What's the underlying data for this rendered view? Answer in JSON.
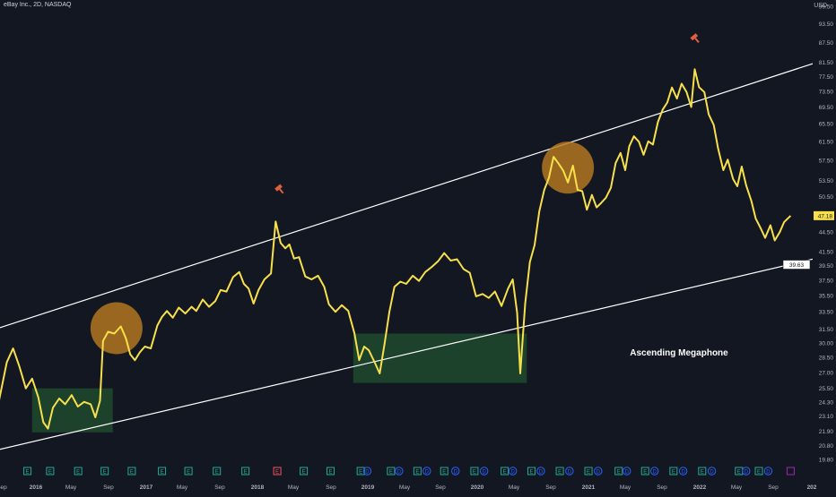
{
  "header": {
    "symbol_title": "eBay Inc., 2D, NASDAQ"
  },
  "price_axis": {
    "unit": "USD"
  },
  "chart_data": {
    "type": "line",
    "title": "eBay Inc., 2D, NASDAQ",
    "y_ticks": [
      "19.80",
      "20.80",
      "21.90",
      "23.10",
      "24.30",
      "25.50",
      "27.00",
      "28.50",
      "30.00",
      "31.50",
      "33.50",
      "35.50",
      "37.50",
      "39.50",
      "41.50",
      "44.50",
      "47.50",
      "50.50",
      "53.50",
      "57.50",
      "61.50",
      "65.50",
      "69.50",
      "73.50",
      "77.50",
      "81.50",
      "87.50",
      "93.50",
      "99.50"
    ],
    "x_ticks": [
      "Sep",
      "2016",
      "May",
      "Sep",
      "2017",
      "May",
      "Sep",
      "2018",
      "May",
      "Sep",
      "2019",
      "May",
      "Sep",
      "2020",
      "May",
      "Sep",
      "2021",
      "May",
      "Sep",
      "2022",
      "May",
      "Sep",
      "202"
    ],
    "ylim": [
      19.8,
      99.5
    ],
    "log_scale": true,
    "last_price_label": "47.18",
    "channel_price_label": "39.63",
    "annotation": "Ascending Megaphone",
    "series": [
      {
        "color": "#f7e04b",
        "points": [
          [
            "2015-08-01",
            26.5
          ],
          [
            "2015-08-20",
            24.3
          ],
          [
            "2015-09-15",
            28.0
          ],
          [
            "2015-10-05",
            29.4
          ],
          [
            "2015-10-25",
            27.6
          ],
          [
            "2015-11-15",
            25.5
          ],
          [
            "2015-12-05",
            26.4
          ],
          [
            "2015-12-25",
            24.7
          ],
          [
            "2016-01-10",
            22.6
          ],
          [
            "2016-01-25",
            22.1
          ],
          [
            "2016-02-10",
            23.8
          ],
          [
            "2016-03-01",
            24.6
          ],
          [
            "2016-03-20",
            24.1
          ],
          [
            "2016-04-10",
            24.9
          ],
          [
            "2016-04-30",
            23.9
          ],
          [
            "2016-05-20",
            24.3
          ],
          [
            "2016-06-10",
            24.1
          ],
          [
            "2016-06-25",
            23.0
          ],
          [
            "2016-07-10",
            24.4
          ],
          [
            "2016-07-20",
            30.2
          ],
          [
            "2016-08-05",
            31.2
          ],
          [
            "2016-08-25",
            31.0
          ],
          [
            "2016-09-15",
            31.8
          ],
          [
            "2016-10-01",
            30.5
          ],
          [
            "2016-10-15",
            28.8
          ],
          [
            "2016-10-30",
            28.2
          ],
          [
            "2016-11-15",
            29.0
          ],
          [
            "2016-12-01",
            29.6
          ],
          [
            "2016-12-20",
            29.4
          ],
          [
            "2017-01-10",
            31.9
          ],
          [
            "2017-01-25",
            32.9
          ],
          [
            "2017-02-10",
            33.6
          ],
          [
            "2017-03-01",
            32.8
          ],
          [
            "2017-03-20",
            34.0
          ],
          [
            "2017-04-10",
            33.3
          ],
          [
            "2017-04-30",
            34.1
          ],
          [
            "2017-05-15",
            33.6
          ],
          [
            "2017-06-05",
            35.0
          ],
          [
            "2017-06-25",
            34.1
          ],
          [
            "2017-07-15",
            34.8
          ],
          [
            "2017-08-01",
            36.2
          ],
          [
            "2017-08-20",
            36.0
          ],
          [
            "2017-09-10",
            37.9
          ],
          [
            "2017-09-30",
            38.6
          ],
          [
            "2017-10-15",
            37.0
          ],
          [
            "2017-10-30",
            36.4
          ],
          [
            "2017-11-15",
            34.5
          ],
          [
            "2017-12-01",
            36.2
          ],
          [
            "2017-12-20",
            37.6
          ],
          [
            "2018-01-10",
            38.4
          ],
          [
            "2018-01-25",
            46.2
          ],
          [
            "2018-02-10",
            42.8
          ],
          [
            "2018-02-25",
            42.0
          ],
          [
            "2018-03-10",
            42.6
          ],
          [
            "2018-03-25",
            40.5
          ],
          [
            "2018-04-10",
            40.7
          ],
          [
            "2018-04-30",
            38.0
          ],
          [
            "2018-05-20",
            37.6
          ],
          [
            "2018-06-10",
            38.1
          ],
          [
            "2018-06-30",
            36.6
          ],
          [
            "2018-07-15",
            34.4
          ],
          [
            "2018-08-05",
            33.5
          ],
          [
            "2018-08-25",
            34.3
          ],
          [
            "2018-09-15",
            33.6
          ],
          [
            "2018-10-05",
            31.0
          ],
          [
            "2018-10-20",
            28.2
          ],
          [
            "2018-11-05",
            29.6
          ],
          [
            "2018-11-20",
            29.2
          ],
          [
            "2018-12-10",
            27.9
          ],
          [
            "2018-12-25",
            26.9
          ],
          [
            "2019-01-10",
            30.0
          ],
          [
            "2019-01-25",
            33.5
          ],
          [
            "2019-02-10",
            36.6
          ],
          [
            "2019-03-01",
            37.3
          ],
          [
            "2019-03-20",
            37.0
          ],
          [
            "2019-04-10",
            38.1
          ],
          [
            "2019-04-30",
            37.4
          ],
          [
            "2019-05-20",
            38.6
          ],
          [
            "2019-06-10",
            39.3
          ],
          [
            "2019-06-30",
            40.1
          ],
          [
            "2019-07-20",
            41.3
          ],
          [
            "2019-08-10",
            40.2
          ],
          [
            "2019-08-30",
            40.4
          ],
          [
            "2019-09-20",
            39.0
          ],
          [
            "2019-10-10",
            38.5
          ],
          [
            "2019-10-30",
            35.4
          ],
          [
            "2019-11-20",
            35.7
          ],
          [
            "2019-12-10",
            35.2
          ],
          [
            "2019-12-30",
            36.0
          ],
          [
            "2020-01-20",
            34.2
          ],
          [
            "2020-02-10",
            36.4
          ],
          [
            "2020-02-25",
            37.6
          ],
          [
            "2020-03-10",
            33.4
          ],
          [
            "2020-03-20",
            26.9
          ],
          [
            "2020-04-05",
            34.5
          ],
          [
            "2020-04-20",
            40.0
          ],
          [
            "2020-05-05",
            42.5
          ],
          [
            "2020-05-20",
            47.9
          ],
          [
            "2020-06-05",
            51.7
          ],
          [
            "2020-06-20",
            54.0
          ],
          [
            "2020-07-05",
            58.2
          ],
          [
            "2020-07-20",
            56.9
          ],
          [
            "2020-08-05",
            55.4
          ],
          [
            "2020-08-20",
            53.1
          ],
          [
            "2020-09-05",
            56.4
          ],
          [
            "2020-09-20",
            51.7
          ],
          [
            "2020-10-05",
            51.5
          ],
          [
            "2020-10-20",
            48.2
          ],
          [
            "2020-11-05",
            50.8
          ],
          [
            "2020-11-20",
            48.6
          ],
          [
            "2020-12-05",
            49.4
          ],
          [
            "2020-12-20",
            50.3
          ],
          [
            "2021-01-05",
            52.1
          ],
          [
            "2021-01-20",
            56.9
          ],
          [
            "2021-02-05",
            59.0
          ],
          [
            "2021-02-20",
            55.5
          ],
          [
            "2021-03-05",
            60.4
          ],
          [
            "2021-03-20",
            62.6
          ],
          [
            "2021-04-05",
            61.4
          ],
          [
            "2021-04-20",
            58.6
          ],
          [
            "2021-05-05",
            61.5
          ],
          [
            "2021-05-20",
            60.8
          ],
          [
            "2021-06-05",
            65.9
          ],
          [
            "2021-06-20",
            68.8
          ],
          [
            "2021-07-05",
            70.6
          ],
          [
            "2021-07-20",
            74.5
          ],
          [
            "2021-08-05",
            71.6
          ],
          [
            "2021-08-20",
            75.5
          ],
          [
            "2021-09-05",
            73.3
          ],
          [
            "2021-09-20",
            69.5
          ],
          [
            "2021-10-01",
            79.5
          ],
          [
            "2021-10-15",
            74.6
          ],
          [
            "2021-11-01",
            73.3
          ],
          [
            "2021-11-15",
            67.7
          ],
          [
            "2021-12-01",
            65.2
          ],
          [
            "2021-12-15",
            60.0
          ],
          [
            "2022-01-01",
            55.5
          ],
          [
            "2022-01-15",
            57.6
          ],
          [
            "2022-02-01",
            53.8
          ],
          [
            "2022-02-15",
            52.4
          ],
          [
            "2022-03-01",
            56.2
          ],
          [
            "2022-03-15",
            52.6
          ],
          [
            "2022-04-01",
            49.7
          ],
          [
            "2022-04-15",
            46.7
          ],
          [
            "2022-05-01",
            45.1
          ],
          [
            "2022-05-15",
            43.6
          ],
          [
            "2022-06-01",
            45.6
          ],
          [
            "2022-06-15",
            43.2
          ],
          [
            "2022-07-01",
            44.5
          ],
          [
            "2022-07-15",
            46.1
          ],
          [
            "2022-08-05",
            47.18
          ]
        ]
      }
    ],
    "trendlines": [
      {
        "role": "upper",
        "color": "#ffffff",
        "from": [
          "2015-08-01",
          31.4
        ],
        "to": [
          "2022-11-01",
          81.6
        ]
      },
      {
        "role": "lower",
        "color": "#ffffff",
        "from": [
          "2015-08-01",
          20.4
        ],
        "to": [
          "2022-11-01",
          40.6
        ]
      }
    ],
    "rectangles": [
      {
        "color": "#1f4a2e",
        "from": [
          "2015-12-05",
          25.5
        ],
        "to": [
          "2016-08-20",
          21.8
        ]
      },
      {
        "color": "#1f4a2e",
        "from": [
          "2018-10-01",
          31.0
        ],
        "to": [
          "2020-04-10",
          26.0
        ]
      }
    ],
    "circles": [
      {
        "color": "#b7791f",
        "center": [
          "2016-09-01",
          31.6
        ]
      },
      {
        "color": "#b7791f",
        "center": [
          "2020-08-20",
          56.0
        ]
      }
    ],
    "event_markers": [
      {
        "label": "E",
        "color": "#22ab94",
        "date": "2015-11-20"
      },
      {
        "label": "E",
        "color": "#22ab94",
        "date": "2016-02-01"
      },
      {
        "label": "E",
        "color": "#22ab94",
        "date": "2016-05-01"
      },
      {
        "label": "E",
        "color": "#22ab94",
        "date": "2016-07-25"
      },
      {
        "label": "E",
        "color": "#22ab94",
        "date": "2016-10-20"
      },
      {
        "label": "E",
        "color": "#22ab94",
        "date": "2017-01-25"
      },
      {
        "label": "E",
        "color": "#22ab94",
        "date": "2017-04-20"
      },
      {
        "label": "E",
        "color": "#22ab94",
        "date": "2017-07-20"
      },
      {
        "label": "E",
        "color": "#22ab94",
        "date": "2017-10-20"
      },
      {
        "label": "E",
        "color": "#f7525f",
        "date": "2018-01-30"
      },
      {
        "label": "E",
        "color": "#22ab94",
        "date": "2018-04-25"
      },
      {
        "label": "E",
        "color": "#22ab94",
        "date": "2018-07-20"
      },
      {
        "label": "E",
        "color": "#22ab94",
        "date": "2018-10-25"
      },
      {
        "label": "D",
        "color": "#2962ff",
        "date": "2018-11-15"
      },
      {
        "label": "E",
        "color": "#22ab94",
        "date": "2019-01-30"
      },
      {
        "label": "D",
        "color": "#2962ff",
        "date": "2019-02-25"
      },
      {
        "label": "E",
        "color": "#22ab94",
        "date": "2019-04-25"
      },
      {
        "label": "D",
        "color": "#2962ff",
        "date": "2019-05-25"
      },
      {
        "label": "E",
        "color": "#22ab94",
        "date": "2019-07-20"
      },
      {
        "label": "D",
        "color": "#2962ff",
        "date": "2019-08-25"
      },
      {
        "label": "E",
        "color": "#22ab94",
        "date": "2019-10-25"
      },
      {
        "label": "D",
        "color": "#2962ff",
        "date": "2019-11-25"
      },
      {
        "label": "E",
        "color": "#22ab94",
        "date": "2020-01-30"
      },
      {
        "label": "D",
        "color": "#2962ff",
        "date": "2020-02-25"
      },
      {
        "label": "E",
        "color": "#22ab94",
        "date": "2020-04-25"
      },
      {
        "label": "D",
        "color": "#2962ff",
        "date": "2020-05-25"
      },
      {
        "label": "E",
        "color": "#22ab94",
        "date": "2020-07-25"
      },
      {
        "label": "D",
        "color": "#2962ff",
        "date": "2020-08-25"
      },
      {
        "label": "E",
        "color": "#22ab94",
        "date": "2020-10-25"
      },
      {
        "label": "D",
        "color": "#2962ff",
        "date": "2020-11-25"
      },
      {
        "label": "E",
        "color": "#22ab94",
        "date": "2021-01-30"
      },
      {
        "label": "D",
        "color": "#2962ff",
        "date": "2021-02-25"
      },
      {
        "label": "E",
        "color": "#22ab94",
        "date": "2021-04-25"
      },
      {
        "label": "D",
        "color": "#2962ff",
        "date": "2021-05-25"
      },
      {
        "label": "E",
        "color": "#22ab94",
        "date": "2021-07-25"
      },
      {
        "label": "D",
        "color": "#2962ff",
        "date": "2021-08-25"
      },
      {
        "label": "E",
        "color": "#22ab94",
        "date": "2021-10-25"
      },
      {
        "label": "D",
        "color": "#2962ff",
        "date": "2021-11-25"
      },
      {
        "label": "E",
        "color": "#22ab94",
        "date": "2022-02-20"
      },
      {
        "label": "D",
        "color": "#2962ff",
        "date": "2022-03-15"
      },
      {
        "label": "E",
        "color": "#22ab94",
        "date": "2022-04-25"
      },
      {
        "label": "D",
        "color": "#2962ff",
        "date": "2022-05-25"
      },
      {
        "label": "",
        "color": "#9c27b0",
        "date": "2022-08-05"
      }
    ],
    "hammer_markers": [
      {
        "color": "#e0603d",
        "date": "2018-02-05",
        "price": 52.0
      },
      {
        "color": "#e0603d",
        "date": "2021-10-01",
        "price": 89.0
      }
    ]
  }
}
